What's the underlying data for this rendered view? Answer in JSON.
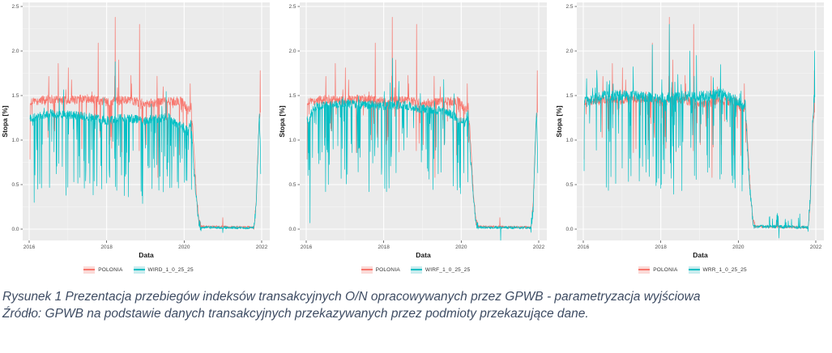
{
  "caption": {
    "line1": "Rysunek 1 Prezentacja przebiegów indeksów transakcyjnych O/N opracowywanych przez GPWB - parametryzacja wyjściowa",
    "line2": "Źródło: GPWB na podstawie danych transakcyjnych przekazywanych przez podmioty przekazujące dane."
  },
  "colors": {
    "polonia": "#F8766D",
    "teal": "#00BFC4",
    "panel_bg": "#EBEBEB",
    "grid": "#FFFFFF",
    "tick_label": "#4D4D4D",
    "axis_title": "#1A1A1A",
    "caption_text": "#3E4C63",
    "key_bg_red": "#FBDAD7",
    "key_bg_teal": "#C9ECEE"
  },
  "chart_data": [
    {
      "type": "line",
      "title": "",
      "xlabel": "Data",
      "ylabel": "Stopa [%]",
      "xticks": [
        2016,
        2018,
        2020,
        2022
      ],
      "yticks": [
        0.0,
        0.5,
        1.0,
        1.5,
        2.0,
        2.5
      ],
      "xlim": [
        2015.83,
        2022.19
      ],
      "ylim": [
        -0.13,
        2.55
      ],
      "grid": true,
      "legend_position": "bottom",
      "series": [
        {
          "name": "POLONIA",
          "color": "#F8766D",
          "key_bg": "#FBDAD7",
          "seed": 7,
          "anchors": [
            [
              2016.02,
              1.42
            ],
            [
              2016.5,
              1.46
            ],
            [
              2017.0,
              1.44
            ],
            [
              2017.5,
              1.47
            ],
            [
              2018.0,
              1.43
            ],
            [
              2018.5,
              1.45
            ],
            [
              2019.0,
              1.41
            ],
            [
              2019.5,
              1.43
            ],
            [
              2019.95,
              1.44
            ],
            [
              2020.1,
              1.33
            ],
            [
              2020.18,
              1.38
            ],
            [
              2020.24,
              1.0
            ],
            [
              2020.3,
              0.5
            ],
            [
              2020.38,
              0.08
            ],
            [
              2020.44,
              0.03
            ],
            [
              2021.8,
              0.02
            ],
            [
              2021.86,
              0.3
            ],
            [
              2021.9,
              0.85
            ],
            [
              2021.94,
              1.28
            ],
            [
              2021.975,
              1.32
            ]
          ],
          "noise": [
            [
              2016.02,
              2020.2,
              0.05
            ],
            [
              2020.2,
              2020.44,
              0.04
            ],
            [
              2020.44,
              2021.8,
              0.013
            ],
            [
              2021.8,
              2021.975,
              0.05
            ]
          ],
          "down": [
            [
              2016.02,
              2020.2,
              0.07,
              0.08,
              0.6
            ]
          ],
          "up": [
            [
              2016.02,
              2020.2,
              0.012,
              0.08,
              0.4
            ]
          ],
          "events": [
            [
              2016.75,
              1.86
            ],
            [
              2017.78,
              2.09
            ],
            [
              2018.22,
              2.38
            ],
            [
              2018.31,
              1.9
            ],
            [
              2018.85,
              2.3
            ],
            [
              2019.32,
              0.58
            ],
            [
              2021.0,
              0.13
            ],
            [
              2021.965,
              1.78
            ]
          ]
        },
        {
          "name": "WIRD_1_0_25_25",
          "color": "#00BFC4",
          "key_bg": "#C9ECEE",
          "seed": 21,
          "anchors": [
            [
              2016.02,
              1.24
            ],
            [
              2016.5,
              1.3
            ],
            [
              2017.0,
              1.28
            ],
            [
              2017.5,
              1.26
            ],
            [
              2018.0,
              1.22
            ],
            [
              2018.5,
              1.25
            ],
            [
              2019.0,
              1.22
            ],
            [
              2019.6,
              1.26
            ],
            [
              2019.95,
              1.14
            ],
            [
              2020.1,
              1.1
            ],
            [
              2020.18,
              1.22
            ],
            [
              2020.24,
              0.75
            ],
            [
              2020.3,
              0.4
            ],
            [
              2020.38,
              0.07
            ],
            [
              2020.44,
              0.02
            ],
            [
              2021.8,
              0.015
            ],
            [
              2021.86,
              0.25
            ],
            [
              2021.9,
              0.8
            ],
            [
              2021.94,
              1.27
            ],
            [
              2021.96,
              1.05
            ],
            [
              2021.975,
              0.57
            ]
          ],
          "noise": [
            [
              2016.02,
              2020.2,
              0.05
            ],
            [
              2020.2,
              2020.44,
              0.05
            ],
            [
              2020.44,
              2021.8,
              0.015
            ],
            [
              2021.8,
              2021.975,
              0.06
            ]
          ],
          "down": [
            [
              2016.02,
              2020.2,
              0.13,
              0.1,
              0.9
            ]
          ],
          "up": [
            [
              2016.02,
              2020.2,
              0.012,
              0.05,
              0.3
            ]
          ],
          "events": [
            [
              2016.13,
              0.3
            ],
            [
              2016.22,
              0.45
            ],
            [
              2016.95,
              0.38
            ],
            [
              2017.0,
              0.47
            ],
            [
              2018.22,
              1.88
            ],
            [
              2019.9,
              0.75
            ],
            [
              2021.0,
              -0.04
            ]
          ]
        }
      ]
    },
    {
      "type": "line",
      "title": "",
      "xlabel": "Data",
      "ylabel": "Stopa [%]",
      "xticks": [
        2016,
        2018,
        2020,
        2022
      ],
      "yticks": [
        0.0,
        0.5,
        1.0,
        1.5,
        2.0,
        2.5
      ],
      "xlim": [
        2015.83,
        2022.19
      ],
      "ylim": [
        -0.13,
        2.55
      ],
      "grid": true,
      "legend_position": "bottom",
      "series": [
        {
          "name": "POLONIA",
          "color": "#F8766D",
          "key_bg": "#FBDAD7",
          "seed": 7,
          "anchors": [
            [
              2016.02,
              1.42
            ],
            [
              2016.5,
              1.46
            ],
            [
              2017.0,
              1.44
            ],
            [
              2017.5,
              1.47
            ],
            [
              2018.0,
              1.43
            ],
            [
              2018.5,
              1.45
            ],
            [
              2019.0,
              1.41
            ],
            [
              2019.5,
              1.43
            ],
            [
              2019.95,
              1.44
            ],
            [
              2020.1,
              1.33
            ],
            [
              2020.18,
              1.38
            ],
            [
              2020.24,
              1.0
            ],
            [
              2020.3,
              0.5
            ],
            [
              2020.38,
              0.08
            ],
            [
              2020.44,
              0.03
            ],
            [
              2021.8,
              0.02
            ],
            [
              2021.86,
              0.3
            ],
            [
              2021.9,
              0.85
            ],
            [
              2021.94,
              1.28
            ],
            [
              2021.975,
              1.32
            ]
          ],
          "noise": [
            [
              2016.02,
              2020.2,
              0.05
            ],
            [
              2020.2,
              2020.44,
              0.04
            ],
            [
              2020.44,
              2021.8,
              0.013
            ],
            [
              2021.8,
              2021.975,
              0.05
            ]
          ],
          "down": [
            [
              2016.02,
              2020.2,
              0.07,
              0.08,
              0.6
            ]
          ],
          "up": [
            [
              2016.02,
              2020.2,
              0.012,
              0.08,
              0.4
            ]
          ],
          "events": [
            [
              2016.75,
              1.86
            ],
            [
              2017.78,
              2.09
            ],
            [
              2018.22,
              2.38
            ],
            [
              2018.31,
              1.9
            ],
            [
              2018.85,
              2.3
            ],
            [
              2019.32,
              0.58
            ],
            [
              2021.0,
              0.13
            ],
            [
              2021.965,
              1.78
            ]
          ]
        },
        {
          "name": "WIRF_1_0_25_25",
          "color": "#00BFC4",
          "key_bg": "#C9ECEE",
          "seed": 22,
          "anchors": [
            [
              2016.02,
              1.22
            ],
            [
              2016.25,
              1.38
            ],
            [
              2017.0,
              1.41
            ],
            [
              2017.5,
              1.4
            ],
            [
              2018.0,
              1.38
            ],
            [
              2018.5,
              1.4
            ],
            [
              2019.0,
              1.35
            ],
            [
              2019.5,
              1.33
            ],
            [
              2019.8,
              1.28
            ],
            [
              2019.95,
              1.22
            ],
            [
              2020.1,
              1.2
            ],
            [
              2020.18,
              1.33
            ],
            [
              2020.24,
              0.8
            ],
            [
              2020.3,
              0.45
            ],
            [
              2020.38,
              0.08
            ],
            [
              2020.44,
              0.02
            ],
            [
              2021.8,
              0.015
            ],
            [
              2021.86,
              0.25
            ],
            [
              2021.9,
              0.85
            ],
            [
              2021.94,
              1.28
            ],
            [
              2021.96,
              1.1
            ],
            [
              2021.975,
              0.68
            ]
          ],
          "noise": [
            [
              2016.02,
              2020.2,
              0.05
            ],
            [
              2020.2,
              2020.44,
              0.05
            ],
            [
              2020.44,
              2021.8,
              0.015
            ],
            [
              2021.8,
              2021.975,
              0.06
            ]
          ],
          "down": [
            [
              2016.02,
              2020.2,
              0.13,
              0.1,
              0.95
            ]
          ],
          "up": [
            [
              2016.02,
              2020.2,
              0.015,
              0.05,
              0.3
            ]
          ],
          "events": [
            [
              2016.1,
              0.07
            ],
            [
              2016.5,
              0.42
            ],
            [
              2017.62,
              0.42
            ],
            [
              2018.07,
              0.42
            ],
            [
              2018.23,
              1.92
            ],
            [
              2019.55,
              1.68
            ],
            [
              2021.02,
              -0.15
            ]
          ]
        }
      ]
    },
    {
      "type": "line",
      "title": "",
      "xlabel": "Data",
      "ylabel": "Stopa [%]",
      "xticks": [
        2016,
        2018,
        2020,
        2022
      ],
      "yticks": [
        0.0,
        0.5,
        1.0,
        1.5,
        2.0,
        2.5
      ],
      "xlim": [
        2015.83,
        2022.19
      ],
      "ylim": [
        -0.13,
        2.55
      ],
      "grid": true,
      "legend_position": "bottom",
      "series": [
        {
          "name": "POLONIA",
          "color": "#F8766D",
          "key_bg": "#FBDAD7",
          "seed": 7,
          "anchors": [
            [
              2016.02,
              1.42
            ],
            [
              2016.5,
              1.46
            ],
            [
              2017.0,
              1.44
            ],
            [
              2017.5,
              1.47
            ],
            [
              2018.0,
              1.43
            ],
            [
              2018.5,
              1.45
            ],
            [
              2019.0,
              1.41
            ],
            [
              2019.5,
              1.43
            ],
            [
              2019.95,
              1.44
            ],
            [
              2020.1,
              1.33
            ],
            [
              2020.18,
              1.38
            ],
            [
              2020.24,
              1.0
            ],
            [
              2020.3,
              0.5
            ],
            [
              2020.38,
              0.08
            ],
            [
              2020.44,
              0.03
            ],
            [
              2021.8,
              0.02
            ],
            [
              2021.86,
              0.3
            ],
            [
              2021.9,
              0.85
            ],
            [
              2021.94,
              1.28
            ],
            [
              2021.975,
              1.32
            ]
          ],
          "noise": [
            [
              2016.02,
              2020.2,
              0.05
            ],
            [
              2020.2,
              2020.44,
              0.04
            ],
            [
              2020.44,
              2021.8,
              0.013
            ],
            [
              2021.8,
              2021.975,
              0.05
            ]
          ],
          "down": [
            [
              2016.02,
              2020.2,
              0.07,
              0.08,
              0.6
            ]
          ],
          "up": [
            [
              2016.02,
              2020.2,
              0.012,
              0.08,
              0.4
            ]
          ],
          "events": [
            [
              2016.75,
              1.86
            ],
            [
              2017.78,
              2.09
            ],
            [
              2018.22,
              2.38
            ],
            [
              2018.31,
              1.9
            ],
            [
              2018.85,
              2.3
            ],
            [
              2019.32,
              0.58
            ],
            [
              2021.0,
              0.13
            ],
            [
              2021.965,
              1.78
            ]
          ]
        },
        {
          "name": "WRR_1_0_25_25",
          "color": "#00BFC4",
          "key_bg": "#C9ECEE",
          "seed": 23,
          "anchors": [
            [
              2016.02,
              1.42
            ],
            [
              2016.5,
              1.5
            ],
            [
              2017.0,
              1.5
            ],
            [
              2017.5,
              1.49
            ],
            [
              2018.0,
              1.47
            ],
            [
              2018.5,
              1.49
            ],
            [
              2019.0,
              1.49
            ],
            [
              2019.6,
              1.52
            ],
            [
              2019.95,
              1.45
            ],
            [
              2020.1,
              1.38
            ],
            [
              2020.18,
              1.4
            ],
            [
              2020.24,
              0.85
            ],
            [
              2020.3,
              0.45
            ],
            [
              2020.38,
              0.08
            ],
            [
              2020.44,
              0.03
            ],
            [
              2021.8,
              0.02
            ],
            [
              2021.86,
              0.35
            ],
            [
              2021.9,
              1.0
            ],
            [
              2021.94,
              1.38
            ],
            [
              2021.975,
              1.5
            ]
          ],
          "noise": [
            [
              2016.02,
              2020.2,
              0.06
            ],
            [
              2020.2,
              2020.44,
              0.05
            ],
            [
              2020.44,
              2021.8,
              0.02
            ],
            [
              2021.8,
              2021.975,
              0.08
            ]
          ],
          "down": [
            [
              2016.02,
              2020.2,
              0.13,
              0.15,
              1.05
            ]
          ],
          "up": [
            [
              2016.02,
              2020.2,
              0.03,
              0.08,
              0.35
            ],
            [
              2020.5,
              2021.8,
              0.06,
              0.05,
              0.16
            ]
          ],
          "events": [
            [
              2017.78,
              2.07
            ],
            [
              2018.22,
              2.3
            ],
            [
              2018.75,
              2.0
            ],
            [
              2018.92,
              1.95
            ],
            [
              2021.05,
              -0.1
            ],
            [
              2021.97,
              2.0
            ]
          ]
        }
      ]
    }
  ]
}
